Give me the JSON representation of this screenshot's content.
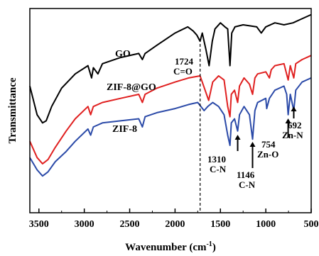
{
  "chart_data": {
    "type": "line",
    "title": "",
    "xlabel": "Wavenumber (cm",
    "xlabel_sup": "-1",
    "xlabel_close": ")",
    "ylabel": "Transmittance",
    "xlim": [
      3600,
      500
    ],
    "x_reversed": true,
    "y_ticks_shown": false,
    "grid": false,
    "legend": "none",
    "xticks": [
      3500,
      3000,
      2500,
      2000,
      1500,
      1000,
      500
    ],
    "xtick_labels": [
      "3500",
      "3000",
      "2500",
      "2000",
      "1500",
      "1000",
      "500"
    ],
    "ylim": [
      0,
      100
    ],
    "series": [
      {
        "name": "GO",
        "color": "#000000",
        "points": [
          [
            3600,
            62
          ],
          [
            3520,
            48
          ],
          [
            3460,
            44
          ],
          [
            3420,
            45
          ],
          [
            3360,
            52
          ],
          [
            3250,
            61
          ],
          [
            3100,
            68
          ],
          [
            2960,
            72
          ],
          [
            2920,
            66
          ],
          [
            2900,
            71
          ],
          [
            2850,
            68
          ],
          [
            2800,
            73
          ],
          [
            2600,
            76
          ],
          [
            2400,
            78
          ],
          [
            2360,
            75
          ],
          [
            2330,
            78
          ],
          [
            2200,
            82
          ],
          [
            2000,
            88
          ],
          [
            1860,
            91
          ],
          [
            1800,
            89
          ],
          [
            1760,
            87
          ],
          [
            1724,
            84
          ],
          [
            1700,
            88
          ],
          [
            1660,
            80
          ],
          [
            1625,
            72
          ],
          [
            1590,
            84
          ],
          [
            1560,
            90
          ],
          [
            1500,
            93
          ],
          [
            1450,
            91
          ],
          [
            1420,
            90
          ],
          [
            1395,
            72
          ],
          [
            1375,
            88
          ],
          [
            1340,
            91
          ],
          [
            1250,
            92
          ],
          [
            1100,
            91
          ],
          [
            1050,
            88
          ],
          [
            1000,
            91
          ],
          [
            900,
            93
          ],
          [
            800,
            92
          ],
          [
            700,
            93
          ],
          [
            600,
            95
          ],
          [
            500,
            97
          ]
        ]
      },
      {
        "name": "ZIF-8@GO",
        "color": "#e02020",
        "points": [
          [
            3600,
            35
          ],
          [
            3520,
            27
          ],
          [
            3460,
            24
          ],
          [
            3400,
            26
          ],
          [
            3320,
            32
          ],
          [
            3200,
            40
          ],
          [
            3100,
            46
          ],
          [
            2960,
            52
          ],
          [
            2930,
            48
          ],
          [
            2900,
            52
          ],
          [
            2800,
            54
          ],
          [
            2600,
            56
          ],
          [
            2400,
            58
          ],
          [
            2360,
            54
          ],
          [
            2330,
            58
          ],
          [
            2200,
            61
          ],
          [
            2000,
            64
          ],
          [
            1850,
            66
          ],
          [
            1724,
            67
          ],
          [
            1700,
            64
          ],
          [
            1630,
            55
          ],
          [
            1585,
            64
          ],
          [
            1520,
            67
          ],
          [
            1460,
            65
          ],
          [
            1420,
            52
          ],
          [
            1395,
            47
          ],
          [
            1380,
            58
          ],
          [
            1345,
            60
          ],
          [
            1310,
            54
          ],
          [
            1290,
            62
          ],
          [
            1240,
            66
          ],
          [
            1180,
            63
          ],
          [
            1146,
            58
          ],
          [
            1120,
            66
          ],
          [
            1090,
            68
          ],
          [
            1000,
            69
          ],
          [
            960,
            66
          ],
          [
            940,
            70
          ],
          [
            900,
            72
          ],
          [
            800,
            73
          ],
          [
            754,
            65
          ],
          [
            730,
            72
          ],
          [
            692,
            66
          ],
          [
            670,
            73
          ],
          [
            600,
            75
          ],
          [
            500,
            77
          ]
        ]
      },
      {
        "name": "ZIF-8",
        "color": "#2b4aa8",
        "points": [
          [
            3600,
            27
          ],
          [
            3520,
            21
          ],
          [
            3460,
            18
          ],
          [
            3400,
            20
          ],
          [
            3320,
            25
          ],
          [
            3200,
            30
          ],
          [
            3100,
            35
          ],
          [
            2960,
            41
          ],
          [
            2930,
            38
          ],
          [
            2900,
            42
          ],
          [
            2800,
            44
          ],
          [
            2600,
            45
          ],
          [
            2400,
            46
          ],
          [
            2360,
            42
          ],
          [
            2330,
            47
          ],
          [
            2200,
            49
          ],
          [
            2000,
            51
          ],
          [
            1850,
            53
          ],
          [
            1750,
            54
          ],
          [
            1680,
            50
          ],
          [
            1640,
            52
          ],
          [
            1585,
            54
          ],
          [
            1520,
            52
          ],
          [
            1460,
            48
          ],
          [
            1420,
            38
          ],
          [
            1395,
            33
          ],
          [
            1380,
            44
          ],
          [
            1345,
            46
          ],
          [
            1310,
            40
          ],
          [
            1290,
            48
          ],
          [
            1240,
            52
          ],
          [
            1180,
            48
          ],
          [
            1146,
            36
          ],
          [
            1120,
            50
          ],
          [
            1090,
            54
          ],
          [
            1000,
            56
          ],
          [
            990,
            51
          ],
          [
            960,
            56
          ],
          [
            900,
            60
          ],
          [
            800,
            62
          ],
          [
            770,
            58
          ],
          [
            754,
            48
          ],
          [
            730,
            58
          ],
          [
            692,
            50
          ],
          [
            670,
            60
          ],
          [
            600,
            64
          ],
          [
            500,
            66
          ]
        ]
      }
    ],
    "series_labels": [
      {
        "text": "GO",
        "series": "GO"
      },
      {
        "text": "ZIF-8@GO",
        "series": "ZIF-8@GO"
      },
      {
        "text": "ZIF-8",
        "series": "ZIF-8"
      }
    ],
    "annotations": [
      {
        "wavenumber": "1724",
        "group": "C=O"
      },
      {
        "wavenumber": "1310",
        "group": "C-N"
      },
      {
        "wavenumber": "1146",
        "group": "C-N"
      },
      {
        "wavenumber": "754",
        "group": "Zn-O"
      },
      {
        "wavenumber": "692",
        "group": "Zn-N"
      }
    ],
    "dashed_line_at": 1724
  }
}
